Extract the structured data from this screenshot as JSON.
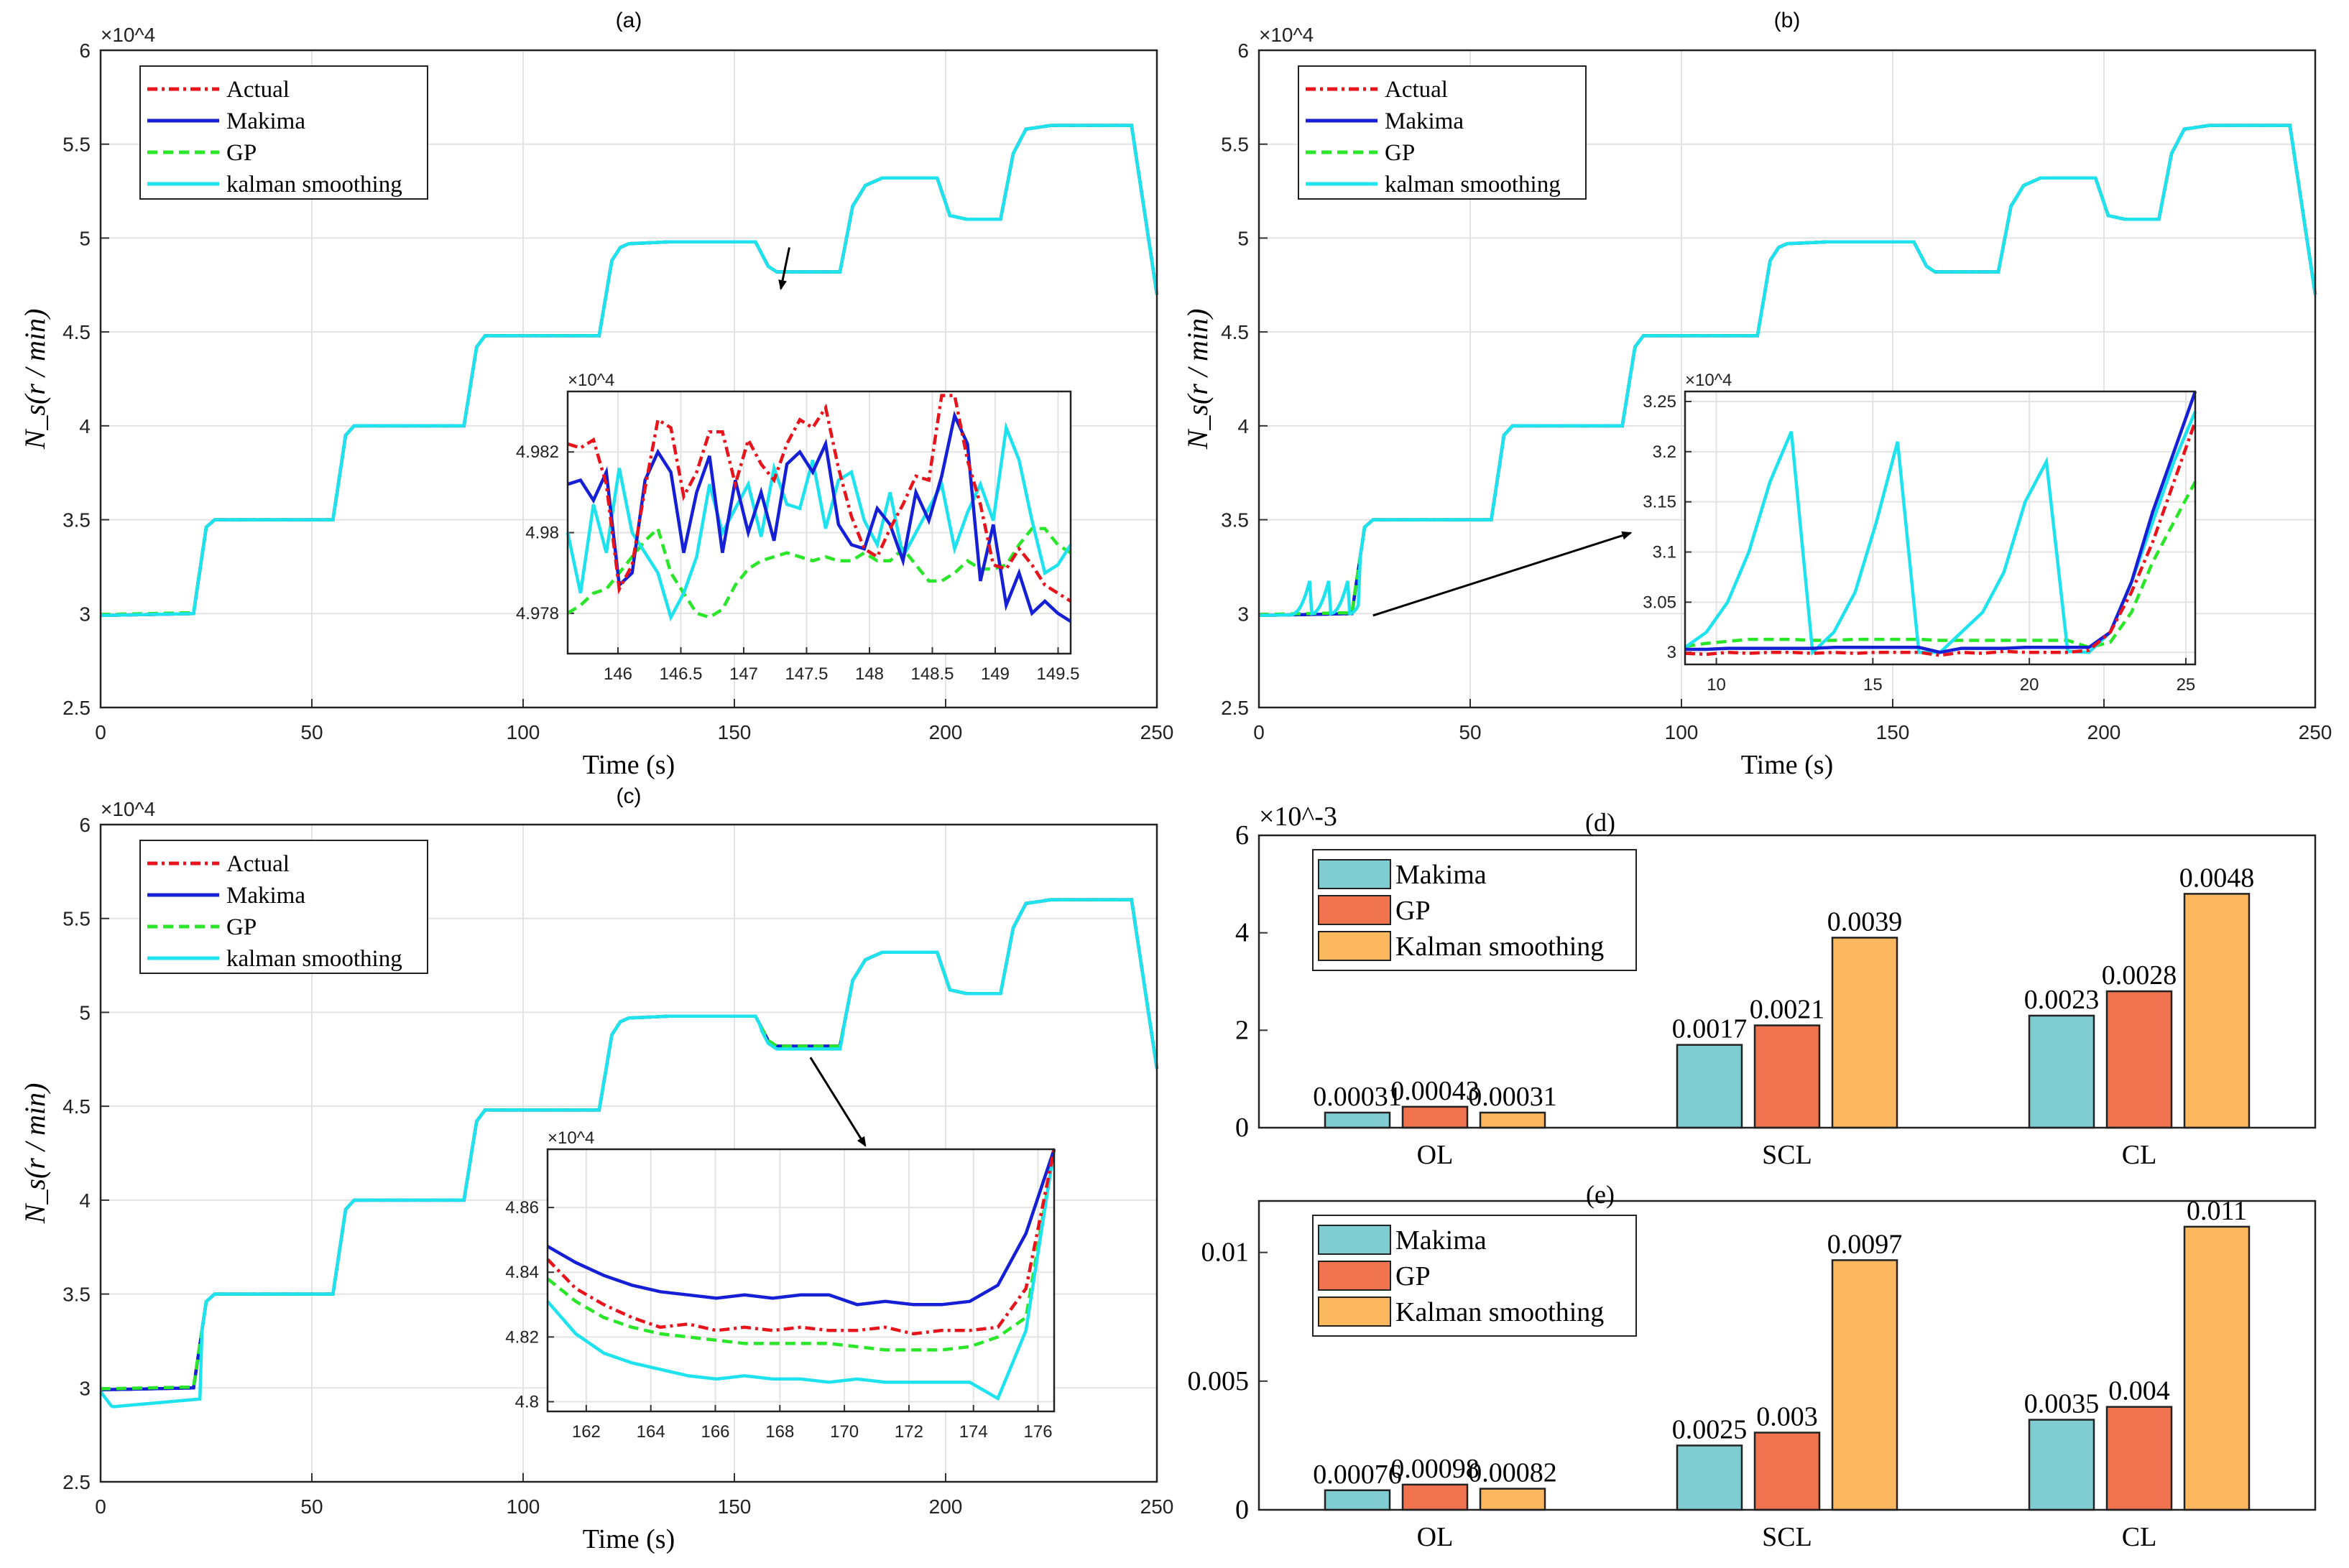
{
  "figure": {
    "colors": {
      "actual": "#e8141c",
      "makima": "#1520d6",
      "gp": "#29e629",
      "kalman": "#1ee3ee",
      "bar_makima": "#7fcdd2",
      "bar_gp": "#f0734f",
      "bar_kalman": "#fbb85f",
      "arrow": "#000000"
    },
    "legend_line_labels": [
      "Actual",
      "Makima",
      "GP",
      "kalman smoothing"
    ],
    "legend_bar_labels": [
      "Makima",
      "GP",
      "Kalman smoothing"
    ]
  },
  "chart_data": [
    {
      "id": "a",
      "type": "line",
      "title": "(a)",
      "xlabel": "Time (s)",
      "ylabel": "N_s(r / min)",
      "exponent_label": "×10^4",
      "xlim": [
        0,
        250
      ],
      "ylim": [
        2.5,
        6
      ],
      "xticks": [
        "0",
        "50",
        "100",
        "150",
        "200",
        "250"
      ],
      "yticks": [
        "2.5",
        "3",
        "3.5",
        "4",
        "4.5",
        "5",
        "5.5",
        "6"
      ],
      "series": [
        {
          "name": "Actual",
          "variant": "base"
        },
        {
          "name": "Makima",
          "variant": "base"
        },
        {
          "name": "GP",
          "variant": "base"
        },
        {
          "name": "kalman smoothing",
          "variant": "base"
        }
      ],
      "inset": {
        "xlim": [
          145.6,
          149.6
        ],
        "ylim": [
          4.977,
          4.9835
        ],
        "exponent_label": "×10^4",
        "xticks": [
          "146",
          "146.5",
          "147",
          "147.5",
          "148",
          "148.5",
          "149",
          "149.5"
        ],
        "yticks": [
          "4.978",
          "4.98",
          "4.982"
        ],
        "x": [
          145.65,
          145.75,
          145.85,
          145.95,
          146.05,
          146.15,
          146.25,
          146.35,
          146.45,
          146.55,
          146.65,
          146.75,
          146.85,
          146.95,
          147.05,
          147.15,
          147.25,
          147.35,
          147.45,
          147.55,
          147.65,
          147.75,
          147.85,
          147.95,
          148.05,
          147.15,
          148.25,
          148.35,
          148.45,
          148.55,
          148.65,
          148.75,
          148.85,
          148.95,
          149.05,
          149.15,
          149.25,
          149.35,
          149.45,
          149.55
        ],
        "series": [
          {
            "name": "Actual",
            "values": [
              4.9822,
              4.9821,
              4.9823,
              4.9812,
              4.9786,
              4.9792,
              4.9811,
              4.9828,
              4.9826,
              4.9809,
              4.9815,
              4.9825,
              4.9825,
              4.9812,
              4.9823,
              4.9817,
              4.9813,
              4.9822,
              4.9828,
              4.9826,
              4.9831,
              4.9816,
              4.9804,
              4.9796,
              4.9794,
              4.9801,
              4.9807,
              4.9814,
              4.9813,
              4.9834,
              4.9834,
              4.9818,
              4.9807,
              4.9792,
              4.9791,
              4.9796,
              4.9792,
              4.9787,
              4.9785,
              4.9783
            ]
          },
          {
            "name": "Makima",
            "values": [
              4.9812,
              4.9813,
              4.9808,
              4.9815,
              4.9787,
              4.979,
              4.9813,
              4.982,
              4.9815,
              4.9795,
              4.981,
              4.9819,
              4.9795,
              4.9813,
              4.98,
              4.981,
              4.9798,
              4.9817,
              4.982,
              4.9815,
              4.9822,
              4.9802,
              4.9797,
              4.9796,
              4.9806,
              4.9802,
              4.9793,
              4.981,
              4.9803,
              4.9814,
              4.9829,
              4.9822,
              4.9788,
              4.9802,
              4.9782,
              4.979,
              4.978,
              4.9783,
              4.978,
              4.9778
            ]
          },
          {
            "name": "GP",
            "values": [
              4.978,
              4.9782,
              4.9785,
              4.9786,
              4.979,
              4.9794,
              4.9798,
              4.9801,
              4.979,
              4.9785,
              4.978,
              4.9779,
              4.9781,
              4.9787,
              4.9791,
              4.9793,
              4.9794,
              4.9795,
              4.9794,
              4.9793,
              4.9794,
              4.9793,
              4.9793,
              4.9795,
              4.9793,
              4.9793,
              4.9796,
              4.9792,
              4.9788,
              4.9788,
              4.979,
              4.9793,
              4.9791,
              4.9791,
              4.9792,
              4.9797,
              4.9801,
              4.9801,
              4.9797,
              4.9795
            ]
          },
          {
            "name": "kalman smoothing",
            "values": [
              4.98,
              4.9785,
              4.9807,
              4.9795,
              4.9816,
              4.98,
              4.9795,
              4.979,
              4.9779,
              4.9785,
              4.9794,
              4.9812,
              4.98,
              4.9806,
              4.9812,
              4.9799,
              4.9816,
              4.9807,
              4.9806,
              4.9818,
              4.9801,
              4.9813,
              4.9815,
              4.9803,
              4.9797,
              4.981,
              4.9794,
              4.98,
              4.9806,
              4.9812,
              4.9796,
              4.9805,
              4.9812,
              4.9803,
              4.9826,
              4.9818,
              4.9803,
              4.979,
              4.9792,
              4.9797
            ]
          }
        ]
      },
      "arrow": {
        "from": [
          163,
          4.95
        ],
        "to": [
          161,
          4.73
        ]
      }
    },
    {
      "id": "b",
      "type": "line",
      "title": "(b)",
      "xlabel": "Time (s)",
      "ylabel": "N_s(r / min)",
      "exponent_label": "×10^4",
      "xlim": [
        0,
        250
      ],
      "ylim": [
        2.5,
        6
      ],
      "xticks": [
        "0",
        "50",
        "100",
        "150",
        "200",
        "250"
      ],
      "yticks": [
        "2.5",
        "3",
        "3.5",
        "4",
        "4.5",
        "5",
        "5.5",
        "6"
      ],
      "series": [
        {
          "name": "Actual",
          "variant": "base"
        },
        {
          "name": "Makima",
          "variant": "base"
        },
        {
          "name": "GP",
          "variant": "base"
        },
        {
          "name": "kalman smoothing",
          "variant": "b"
        }
      ],
      "inset": {
        "xlim": [
          9,
          25.3
        ],
        "ylim": [
          2.988,
          3.26
        ],
        "exponent_label": "×10^4",
        "xticks": [
          "10",
          "15",
          "20",
          "25"
        ],
        "yticks": [
          "3",
          "3.05",
          "3.1",
          "3.15",
          "3.2",
          "3.25"
        ],
        "x": [
          9,
          10,
          11,
          12,
          13,
          13.1,
          14,
          15,
          16,
          17,
          17.8,
          17.9,
          18,
          19,
          20,
          21,
          22,
          22.5,
          22.6,
          23,
          23.5,
          24,
          24.5,
          25,
          25.3
        ],
        "series": [
          {
            "name": "Actual",
            "values": [
              2.999,
              2.998,
              3.0,
              2.999,
              3.0,
              3.0,
              2.999,
              3.0,
              2.999,
              3.0,
              3.0,
              3.0,
              2.997,
              3.0,
              2.999,
              3.001,
              3.0,
              3.0,
              3.0,
              3.002,
              3.02,
              3.06,
              3.11,
              3.17,
              3.23
            ]
          },
          {
            "name": "Makima",
            "values": [
              3.003,
              3.003,
              3.004,
              3.004,
              3.004,
              3.004,
              3.004,
              3.005,
              3.005,
              3.005,
              3.005,
              3.005,
              3.0,
              3.004,
              3.004,
              3.004,
              3.005,
              3.005,
              3.005,
              3.005,
              3.02,
              3.07,
              3.14,
              3.2,
              3.26
            ]
          },
          {
            "name": "GP",
            "values": [
              3.006,
              3.009,
              3.011,
              3.013,
              3.013,
              3.013,
              3.012,
              3.012,
              3.013,
              3.013,
              3.013,
              3.013,
              3.012,
              3.012,
              3.012,
              3.012,
              3.012,
              3.012,
              3.012,
              3.005,
              3.01,
              3.04,
              3.09,
              3.13,
              3.17
            ]
          },
          {
            "name": "kalman smoothing",
            "values": [
              3.005,
              3.02,
              3.05,
              3.1,
              3.17,
              3.22,
              3.0,
              3.02,
              3.06,
              3.13,
              3.21,
              3.0,
              3.0,
              3.02,
              3.04,
              3.08,
              3.15,
              3.19,
              3.001,
              3.0,
              3.02,
              3.07,
              3.13,
              3.19,
              3.24
            ]
          }
        ]
      },
      "arrow": {
        "from": [
          27,
          2.99
        ],
        "to": [
          88,
          3.43
        ]
      }
    },
    {
      "id": "c",
      "type": "line",
      "title": "(c)",
      "xlabel": "Time (s)",
      "ylabel": "N_s(r / min)",
      "exponent_label": "×10^4",
      "xlim": [
        0,
        250
      ],
      "ylim": [
        2.5,
        6
      ],
      "xticks": [
        "0",
        "50",
        "100",
        "150",
        "200",
        "250"
      ],
      "yticks": [
        "2.5",
        "3",
        "3.5",
        "4",
        "4.5",
        "5",
        "5.5",
        "6"
      ],
      "series": [
        {
          "name": "Actual",
          "variant": "base"
        },
        {
          "name": "Makima",
          "variant": "base"
        },
        {
          "name": "GP",
          "variant": "base"
        },
        {
          "name": "kalman smoothing",
          "variant": "c"
        }
      ],
      "inset": {
        "xlim": [
          160.8,
          176.5
        ],
        "ylim": [
          4.797,
          4.878
        ],
        "exponent_label": "×10^4",
        "xticks": [
          "162",
          "164",
          "166",
          "168",
          "170",
          "172",
          "174",
          "176"
        ],
        "yticks": [
          "4.8",
          "4.82",
          "4.84",
          "4.86"
        ],
        "x": [
          160.8,
          161.5,
          162.5,
          163.5,
          164.5,
          165.5,
          166.5,
          167.5,
          168.5,
          169.5,
          170.5,
          171.5,
          172.5,
          173.5,
          174.5,
          175.0,
          175.3,
          175.6,
          176.0
        ],
        "series": [
          {
            "name": "Actual",
            "values": [
              4.844,
              4.835,
              4.83,
              4.826,
              4.823,
              4.824,
              4.822,
              4.823,
              4.822,
              4.823,
              4.822,
              4.822,
              4.823,
              4.821,
              4.822,
              4.822,
              4.823,
              4.835,
              4.878
            ]
          },
          {
            "name": "Makima",
            "values": [
              4.848,
              4.843,
              4.839,
              4.836,
              4.834,
              4.833,
              4.832,
              4.833,
              4.832,
              4.833,
              4.833,
              4.83,
              4.831,
              4.83,
              4.83,
              4.831,
              4.836,
              4.852,
              4.878
            ]
          },
          {
            "name": "GP",
            "values": [
              4.838,
              4.831,
              4.826,
              4.823,
              4.821,
              4.82,
              4.819,
              4.818,
              4.818,
              4.818,
              4.818,
              4.817,
              4.816,
              4.816,
              4.816,
              4.817,
              4.82,
              4.826,
              4.878
            ]
          },
          {
            "name": "kalman smoothing",
            "values": [
              4.831,
              4.821,
              4.815,
              4.812,
              4.81,
              4.808,
              4.807,
              4.808,
              4.807,
              4.807,
              4.806,
              4.807,
              4.806,
              4.806,
              4.806,
              4.806,
              4.801,
              4.822,
              4.878
            ]
          }
        ]
      },
      "arrow": {
        "from": [
          168,
          4.76
        ],
        "to": [
          181,
          4.29
        ]
      }
    },
    {
      "id": "d",
      "type": "bar",
      "title": "(d)",
      "exponent_label": "×10^-3",
      "categories": [
        "OL",
        "SCL",
        "CL"
      ],
      "ylim": [
        0,
        6
      ],
      "scale": 0.001,
      "yticks": [
        "0",
        "2",
        "4",
        "6"
      ],
      "series": [
        {
          "name": "Makima",
          "values": [
            0.00031,
            0.0017,
            0.0023
          ],
          "labels": [
            "0.00031",
            "0.0017",
            "0.0023"
          ]
        },
        {
          "name": "GP",
          "values": [
            0.00043,
            0.0021,
            0.0028
          ],
          "labels": [
            "0.00043",
            "0.0021",
            "0.0028"
          ]
        },
        {
          "name": "Kalman smoothing",
          "values": [
            0.00031,
            0.0039,
            0.0048
          ],
          "labels": [
            "0.00031",
            "0.0039",
            "0.0048"
          ]
        }
      ]
    },
    {
      "id": "e",
      "type": "bar",
      "title": "(e)",
      "categories": [
        "OL",
        "SCL",
        "CL"
      ],
      "ylim": [
        0,
        0.012
      ],
      "scale": 1,
      "yticks": [
        "0",
        "0.005",
        "0.01"
      ],
      "series": [
        {
          "name": "Makima",
          "values": [
            0.00076,
            0.0025,
            0.0035
          ],
          "labels": [
            "0.00076",
            "0.0025",
            "0.0035"
          ]
        },
        {
          "name": "GP",
          "values": [
            0.00098,
            0.003,
            0.004
          ],
          "labels": [
            "0.00098",
            "0.003",
            "0.004"
          ]
        },
        {
          "name": "Kalman smoothing",
          "values": [
            0.00082,
            0.0097,
            0.011
          ],
          "labels": [
            "0.00082",
            "0.0097",
            "0.011"
          ]
        }
      ]
    }
  ],
  "base_profile": {
    "note": "Speed profile ×10^4 r/min vs time (s), shared by panels a-c",
    "t": [
      0,
      22,
      25,
      27,
      55,
      58,
      60,
      86,
      89,
      91,
      118,
      121,
      123,
      125,
      135,
      155,
      158,
      160,
      175,
      178,
      181,
      185,
      198,
      201,
      205,
      213,
      216,
      219,
      225,
      244,
      250
    ],
    "v": [
      2.99,
      3.0,
      3.46,
      3.5,
      3.5,
      3.95,
      4.0,
      4.0,
      4.42,
      4.48,
      4.48,
      4.88,
      4.95,
      4.97,
      4.98,
      4.98,
      4.85,
      4.82,
      4.82,
      5.17,
      5.28,
      5.32,
      5.32,
      5.12,
      5.1,
      5.1,
      5.45,
      5.58,
      5.6,
      5.6,
      4.7
    ]
  }
}
